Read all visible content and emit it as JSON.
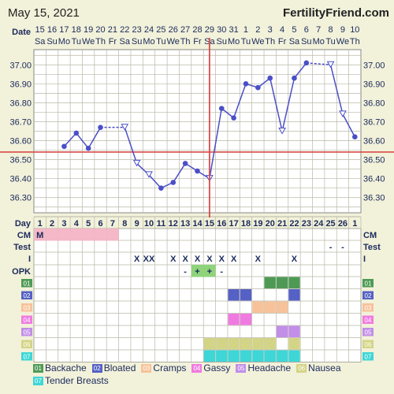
{
  "header": {
    "date": "May 15, 2021",
    "site": "FertilityFriend.com"
  },
  "chart_data": {
    "type": "line",
    "dates": [
      "15",
      "16",
      "17",
      "18",
      "19",
      "20",
      "21",
      "22",
      "23",
      "24",
      "25",
      "26",
      "27",
      "28",
      "29",
      "30",
      "31",
      "1",
      "2",
      "3",
      "4",
      "5",
      "6",
      "7",
      "8",
      "9",
      "10"
    ],
    "weekdays": [
      "Sa",
      "Su",
      "Mo",
      "Tu",
      "We",
      "Th",
      "Fr",
      "Sa",
      "Su",
      "Mo",
      "Tu",
      "We",
      "Th",
      "Fr",
      "Sa",
      "Su",
      "Mo",
      "Tu",
      "We",
      "Th",
      "Fr",
      "Sa",
      "Su",
      "Mo",
      "Tu",
      "We",
      "Th"
    ],
    "cycle_days": [
      "1",
      "2",
      "3",
      "4",
      "5",
      "6",
      "7",
      "8",
      "9",
      "10",
      "11",
      "12",
      "13",
      "14",
      "15",
      "16",
      "17",
      "18",
      "19",
      "20",
      "21",
      "22",
      "23",
      "24",
      "25",
      "26",
      "1"
    ],
    "temps": [
      null,
      null,
      36.57,
      36.64,
      36.56,
      36.67,
      null,
      36.67,
      36.48,
      36.42,
      36.35,
      36.38,
      36.48,
      36.44,
      36.4,
      36.77,
      36.72,
      36.9,
      36.88,
      36.93,
      36.65,
      36.93,
      37.01,
      null,
      37.0,
      36.74,
      36.62
    ],
    "open_points": [
      7,
      8,
      9,
      14,
      20,
      24,
      25
    ],
    "ylim": [
      36.22,
      37.08
    ],
    "yticks": [
      36.3,
      36.4,
      36.5,
      36.6,
      36.7,
      36.8,
      36.9,
      37.0
    ],
    "ytick_labels": [
      "36.30",
      "36.40",
      "36.50",
      "36.60",
      "36.70",
      "36.80",
      "36.90",
      "37.00"
    ],
    "coverline": 36.54,
    "ovulation_index": 14,
    "row_labels": {
      "day": "Day",
      "date": "Date",
      "cm": "CM",
      "test": "Test",
      "i": "I",
      "opk": "OPK"
    },
    "cm": [
      "M",
      "",
      "",
      "",
      "",
      "",
      "",
      "",
      "",
      "",
      "",
      "",
      "",
      "",
      "",
      "",
      "",
      "",
      "",
      "",
      "",
      "",
      "",
      "",
      "",
      "",
      ""
    ],
    "cm_color": "#f4b8c8",
    "cm_filled_days": [
      0,
      1,
      2,
      3,
      4,
      5,
      6
    ],
    "test": [
      "",
      "",
      "",
      "",
      "",
      "",
      "",
      "",
      "",
      "",
      "",
      "",
      "",
      "",
      "",
      "",
      "",
      "",
      "",
      "",
      "",
      "",
      "",
      "",
      "-",
      "-",
      ""
    ],
    "intercourse": [
      "",
      "",
      "",
      "",
      "",
      "",
      "",
      "",
      "X",
      "XX",
      "",
      "X",
      "X",
      "X",
      "X",
      "X",
      "X",
      "",
      "X",
      "",
      "",
      "X",
      "",
      "",
      "",
      "",
      ""
    ],
    "opk": [
      "",
      "",
      "",
      "",
      "",
      "",
      "",
      "",
      "",
      "",
      "",
      "",
      "-",
      "+",
      "+",
      "-",
      "",
      "",
      "",
      "",
      "",
      "",
      "",
      "",
      "",
      "",
      ""
    ],
    "opk_color": "#8fd37a",
    "symptoms": [
      {
        "code": "01",
        "name": "Backache",
        "color": "#4e9a55",
        "days": [
          19,
          20,
          21
        ]
      },
      {
        "code": "02",
        "name": "Bloated",
        "color": "#5561c4",
        "days": [
          16,
          17,
          21
        ]
      },
      {
        "code": "03",
        "name": "Cramps",
        "color": "#f7c29a",
        "days": [
          18,
          19,
          20
        ]
      },
      {
        "code": "04",
        "name": "Gassy",
        "color": "#f07be0",
        "days": [
          16,
          17
        ]
      },
      {
        "code": "05",
        "name": "Headache",
        "color": "#c28ee8",
        "days": [
          20,
          21
        ]
      },
      {
        "code": "06",
        "name": "Nausea",
        "color": "#d4d486",
        "days": [
          14,
          15,
          16,
          17,
          18,
          19,
          21
        ]
      },
      {
        "code": "07",
        "name": "Tender Breasts",
        "color": "#3ed6d6",
        "days": [
          14,
          15,
          16,
          17,
          18,
          19,
          20,
          21
        ]
      }
    ]
  }
}
